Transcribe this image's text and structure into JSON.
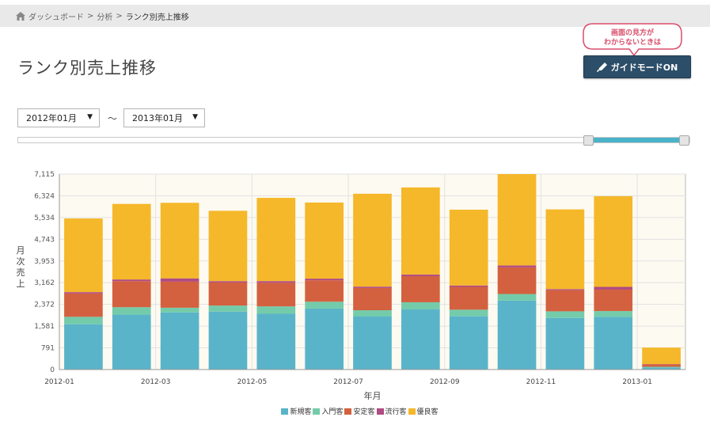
{
  "breadcrumb": {
    "items": [
      "ダッシュボード",
      "分析",
      "ランク別売上推移"
    ],
    "separator": ">"
  },
  "page": {
    "title": "ランク別売上推移"
  },
  "guide": {
    "bubble_line1": "画面の見方が",
    "bubble_line2": "わからないときは",
    "button_label": "ガイドモードON",
    "button_icon": "pencil-icon"
  },
  "period": {
    "start": "2012年01月",
    "end": "2013年01月",
    "separator": "～",
    "dropdown_icon": "▼"
  },
  "slider": {
    "range_start": 0.87,
    "range_end": 1.0
  },
  "colors": {
    "new": "#5ab4c9",
    "entry": "#74cbaa",
    "stable": "#d3613f",
    "churned": "#b04b83",
    "loyal": "#f5b82a",
    "guide_button": "#2c4e68",
    "bubble": "#d94d6a"
  },
  "chart_data": {
    "type": "bar",
    "stacked": true,
    "ylabel": "月次売上",
    "xlabel": "年月",
    "y_ticks": [
      "0",
      "791",
      "1,581",
      "2,372",
      "3,162",
      "3,953",
      "4,743",
      "5,534",
      "6,324",
      "7,115"
    ],
    "ylim": [
      0,
      7115
    ],
    "x_ticks": [
      "2012-01",
      "2012-03",
      "2012-05",
      "2012-07",
      "2012-09",
      "2012-11",
      "2013-01"
    ],
    "categories": [
      "2012-01",
      "2012-02",
      "2012-03",
      "2012-04",
      "2012-05",
      "2012-06",
      "2012-07",
      "2012-08",
      "2012-09",
      "2012-10",
      "2012-11",
      "2012-12",
      "2013-01"
    ],
    "series": [
      {
        "name": "新規客",
        "color": "#5ab4c9",
        "values": [
          1650,
          2000,
          2080,
          2110,
          2030,
          2220,
          1930,
          2190,
          1940,
          2510,
          1880,
          1920,
          80
        ]
      },
      {
        "name": "入門客",
        "color": "#74cbaa",
        "values": [
          270,
          270,
          170,
          220,
          270,
          250,
          230,
          260,
          240,
          240,
          240,
          210,
          20
        ]
      },
      {
        "name": "安定客",
        "color": "#d3613f",
        "values": [
          850,
          950,
          950,
          840,
          860,
          780,
          810,
          950,
          830,
          970,
          770,
          780,
          90
        ]
      },
      {
        "name": "流行客",
        "color": "#b04b83",
        "values": [
          50,
          60,
          120,
          50,
          60,
          60,
          50,
          60,
          50,
          70,
          40,
          100,
          10
        ]
      },
      {
        "name": "優良客",
        "color": "#f5b82a",
        "values": [
          2680,
          2750,
          2750,
          2560,
          3030,
          2770,
          3380,
          3170,
          2760,
          3325,
          2900,
          3300,
          600
        ]
      }
    ],
    "legend_position": "bottom",
    "grid": true
  }
}
